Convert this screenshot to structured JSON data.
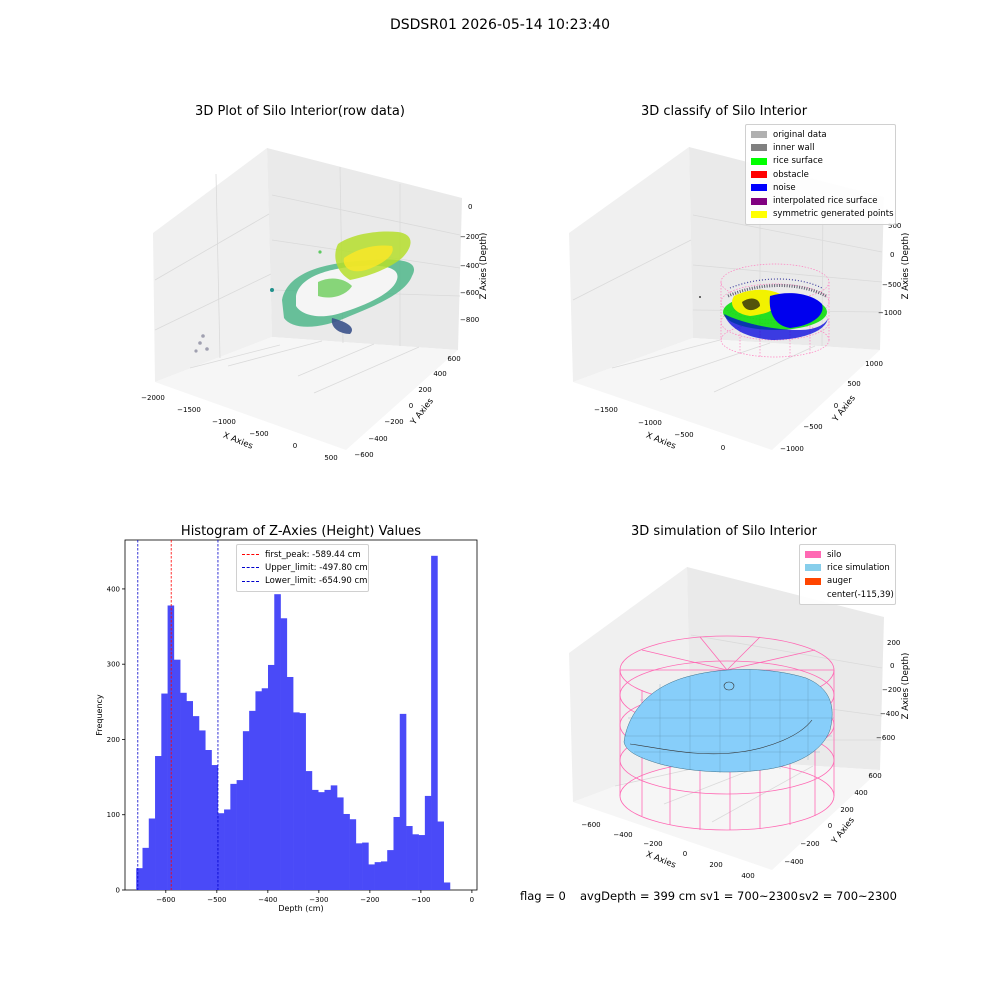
{
  "figure": {
    "suptitle": "DSDSR01 2026-05-14 10:23:40",
    "footer": {
      "flag": "flag = 0",
      "avg_depth": "avgDepth = 399 cm",
      "sv1": "sv1 = 700~2300",
      "sv2": "sv2 = 700~2300"
    }
  },
  "colors": {
    "histogram_bar": "#4a4af8",
    "first_peak_line": "#ff0000",
    "limit_lines": "#0000cc",
    "pane": "#f2f2f2",
    "grid": "#dcdcdc",
    "silo_wire": "#ff69b4",
    "rice_simulation": "#87cefa"
  },
  "chart_data": [
    {
      "type": "scatter",
      "projection": "3d",
      "title": "3D Plot of Silo Interior(row data)",
      "xlabel": "X Axies",
      "ylabel": "Y Axies",
      "zlabel": "Z Axies (Depth)",
      "x_ticks": [
        "−2000",
        "−1500",
        "−1000",
        "−500",
        "0",
        "500"
      ],
      "y_ticks": [
        "−600",
        "−400",
        "−200",
        "0",
        "200",
        "400",
        "600"
      ],
      "z_ticks": [
        "−800",
        "−600",
        "−400",
        "−200",
        "0"
      ],
      "colormap": "viridis"
    },
    {
      "type": "scatter",
      "projection": "3d",
      "title": "3D classify of Silo Interior",
      "xlabel": "X Axies",
      "ylabel": "Y Axies",
      "zlabel": "Z Axies (Depth)",
      "x_ticks": [
        "−1500",
        "−1000",
        "−500",
        "0"
      ],
      "y_ticks": [
        "−1000",
        "−500",
        "0",
        "500",
        "1000"
      ],
      "z_ticks": [
        "−1000",
        "−500",
        "0",
        "500"
      ],
      "legend_position": "top-right",
      "legend": [
        {
          "label": "original data",
          "color": "#b0b0b0"
        },
        {
          "label": "inner wall",
          "color": "#808080"
        },
        {
          "label": "rice surface",
          "color": "#00ff00"
        },
        {
          "label": "obstacle",
          "color": "#ff0000"
        },
        {
          "label": "noise",
          "color": "#0000ff"
        },
        {
          "label": "interpolated rice surface",
          "color": "#800080"
        },
        {
          "label": "symmetric generated points",
          "color": "#ffff00"
        }
      ]
    },
    {
      "type": "bar",
      "title": "Histogram of Z-Axies (Height) Values",
      "xlabel": "Depth (cm)",
      "ylabel": "Frequency",
      "xlim": [
        -680,
        10
      ],
      "ylim": [
        0,
        465
      ],
      "x_ticks": [
        -600,
        -500,
        -400,
        -300,
        -200,
        -100,
        0
      ],
      "x_tick_labels": [
        "−600",
        "−500",
        "−400",
        "−300",
        "−200",
        "−100",
        "0"
      ],
      "y_ticks": [
        0,
        100,
        200,
        300,
        400
      ],
      "bin_start": -658,
      "bin_width": 12.3,
      "values": [
        29,
        56,
        95,
        178,
        261,
        378,
        306,
        262,
        251,
        231,
        212,
        186,
        166,
        102,
        107,
        141,
        146,
        211,
        238,
        264,
        268,
        299,
        393,
        361,
        283,
        236,
        235,
        158,
        133,
        130,
        133,
        139,
        123,
        101,
        94,
        62,
        63,
        34,
        37,
        38,
        53,
        97,
        234,
        85,
        74,
        73,
        125,
        444,
        91,
        10
      ],
      "legend_position": "top-center",
      "vlines": [
        {
          "label": "first_peak: -589.44 cm",
          "x": -589.44,
          "color": "#ff0000"
        },
        {
          "label": "Upper_limit: -497.80 cm",
          "x": -497.8,
          "color": "#0000cc"
        },
        {
          "label": "Lower_limit: -654.90 cm",
          "x": -654.9,
          "color": "#0000cc"
        }
      ]
    },
    {
      "type": "surface",
      "projection": "3d",
      "title": "3D simulation of Silo Interior",
      "xlabel": "X Axies",
      "ylabel": "Y Axies",
      "zlabel": "Z Axies (Depth)",
      "x_ticks": [
        "−600",
        "−400",
        "−200",
        "0",
        "200",
        "400"
      ],
      "y_ticks": [
        "−400",
        "−200",
        "0",
        "200",
        "400",
        "600"
      ],
      "z_ticks": [
        "−600",
        "−400",
        "−200",
        "0",
        "200"
      ],
      "legend_position": "top-right",
      "legend": [
        {
          "label": "silo",
          "color": "#ff69b4"
        },
        {
          "label": "rice simulation",
          "color": "#87ceeb"
        },
        {
          "label": "auger",
          "color": "#ff4500"
        },
        {
          "label": "center(-115,39)",
          "color": ""
        }
      ]
    }
  ]
}
